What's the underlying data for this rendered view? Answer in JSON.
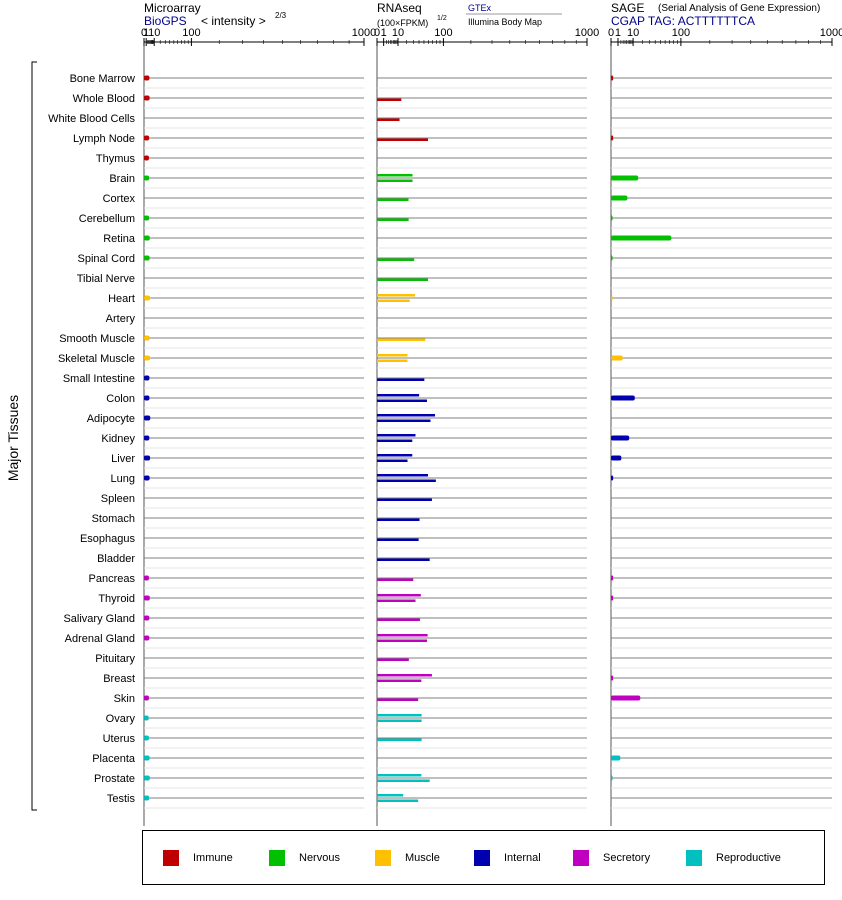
{
  "panel_titles": {
    "microarray": "Microarray",
    "microarray_source": "BioGPS",
    "microarray_units": "< intensity >",
    "microarray_exp": "2/3",
    "rnaseq": "RNAseq",
    "rnaseq_units": "(100×FPKM)",
    "rnaseq_exp": "1/2",
    "rnaseq_source1": "GTEx",
    "rnaseq_source2": "Illumina Body Map",
    "sage": "SAGE",
    "sage_desc": "(Serial Analysis of Gene Expression)",
    "sage_tag": "CGAP TAG: ACTTTTTTCA"
  },
  "y_axis_label": "Major Tissues",
  "tick_labels": [
    "0",
    "1",
    "10",
    "100",
    "1000"
  ],
  "colors": {
    "Immune": "#c00000",
    "Nervous": "#00c000",
    "Muscle": "#ffc000",
    "Internal": "#0000b0",
    "Secretory": "#c000c0",
    "Reproductive": "#00c0c0"
  },
  "legend": [
    "Immune",
    "Nervous",
    "Muscle",
    "Internal",
    "Secretory",
    "Reproductive"
  ],
  "chart_data": {
    "type": "bar",
    "scale": "power-transformed axis; microarray x^(2/3), rnaseq and sage x^(1/2)",
    "xlim": [
      0,
      1000
    ],
    "categories": [
      "Bone Marrow",
      "Whole Blood",
      "White Blood Cells",
      "Lymph Node",
      "Thymus",
      "Brain",
      "Cortex",
      "Cerebellum",
      "Retina",
      "Spinal Cord",
      "Tibial Nerve",
      "Heart",
      "Artery",
      "Smooth Muscle",
      "Skeletal Muscle",
      "Small Intestine",
      "Colon",
      "Adipocyte",
      "Kidney",
      "Liver",
      "Lung",
      "Spleen",
      "Stomach",
      "Esophagus",
      "Bladder",
      "Pancreas",
      "Thyroid",
      "Salivary Gland",
      "Adrenal Gland",
      "Pituitary",
      "Breast",
      "Skin",
      "Ovary",
      "Uterus",
      "Placenta",
      "Prostate",
      "Testis"
    ],
    "groups": [
      "Immune",
      "Immune",
      "Immune",
      "Immune",
      "Immune",
      "Nervous",
      "Nervous",
      "Nervous",
      "Nervous",
      "Nervous",
      "Nervous",
      "Muscle",
      "Muscle",
      "Muscle",
      "Muscle",
      "Internal",
      "Internal",
      "Internal",
      "Internal",
      "Internal",
      "Internal",
      "Internal",
      "Internal",
      "Internal",
      "Internal",
      "Secretory",
      "Secretory",
      "Secretory",
      "Secretory",
      "Secretory",
      "Secretory",
      "Secretory",
      "Reproductive",
      "Reproductive",
      "Reproductive",
      "Reproductive",
      "Reproductive"
    ],
    "microarray": [
      3.9,
      4.1,
      null,
      3.6,
      3.4,
      3.6,
      null,
      3.6,
      4.3,
      4.1,
      null,
      4.6,
      null,
      4.1,
      4.6,
      3.9,
      3.9,
      4.8,
      3.8,
      4.6,
      4.1,
      null,
      null,
      null,
      null,
      3.4,
      4.3,
      3.8,
      3.8,
      null,
      null,
      3.4,
      3.1,
      3.4,
      4.1,
      4.3,
      3.6
    ],
    "rnaseq": [
      [],
      [
        13.4
      ],
      [
        11.5
      ],
      [
        59
      ],
      [],
      [
        28.6,
        28.6
      ],
      [
        22.5
      ],
      [
        22.7
      ],
      [],
      [
        31.3
      ],
      [
        59
      ],
      [
        32.8,
        24.3
      ],
      [],
      [
        52.8
      ],
      [
        21.1,
        21.1
      ],
      [
        50.8
      ],
      [
        40.2,
        56.7
      ],
      [
        76.4,
        64.9
      ],
      [
        33.6,
        28.2
      ],
      [
        28.2,
        21.1
      ],
      [
        59,
        78.6
      ],
      [
        68.4
      ],
      [
        41
      ],
      [
        39.3
      ],
      [
        62.9
      ],
      [
        29.8
      ],
      [
        43.6,
        33.6
      ],
      [
        41.8
      ],
      [
        58.1,
        56.7
      ],
      [
        23
      ],
      [
        68.4,
        44.6
      ],
      [
        38.4
      ],
      [
        45.1,
        45.1
      ],
      [
        45.1
      ],
      [],
      [
        44.6,
        62.9
      ],
      [
        15.6,
        38.4
      ]
    ],
    "sage": [
      0.1,
      null,
      null,
      0.1,
      null,
      15.2,
      5.5,
      0.05,
      74.5,
      0.05,
      null,
      0.05,
      null,
      null,
      2.8,
      null,
      11.6,
      null,
      6.8,
      2.2,
      0.1,
      null,
      null,
      null,
      null,
      0.1,
      0.1,
      null,
      null,
      null,
      0.1,
      17.6,
      null,
      null,
      1.8,
      0.05,
      null
    ]
  }
}
